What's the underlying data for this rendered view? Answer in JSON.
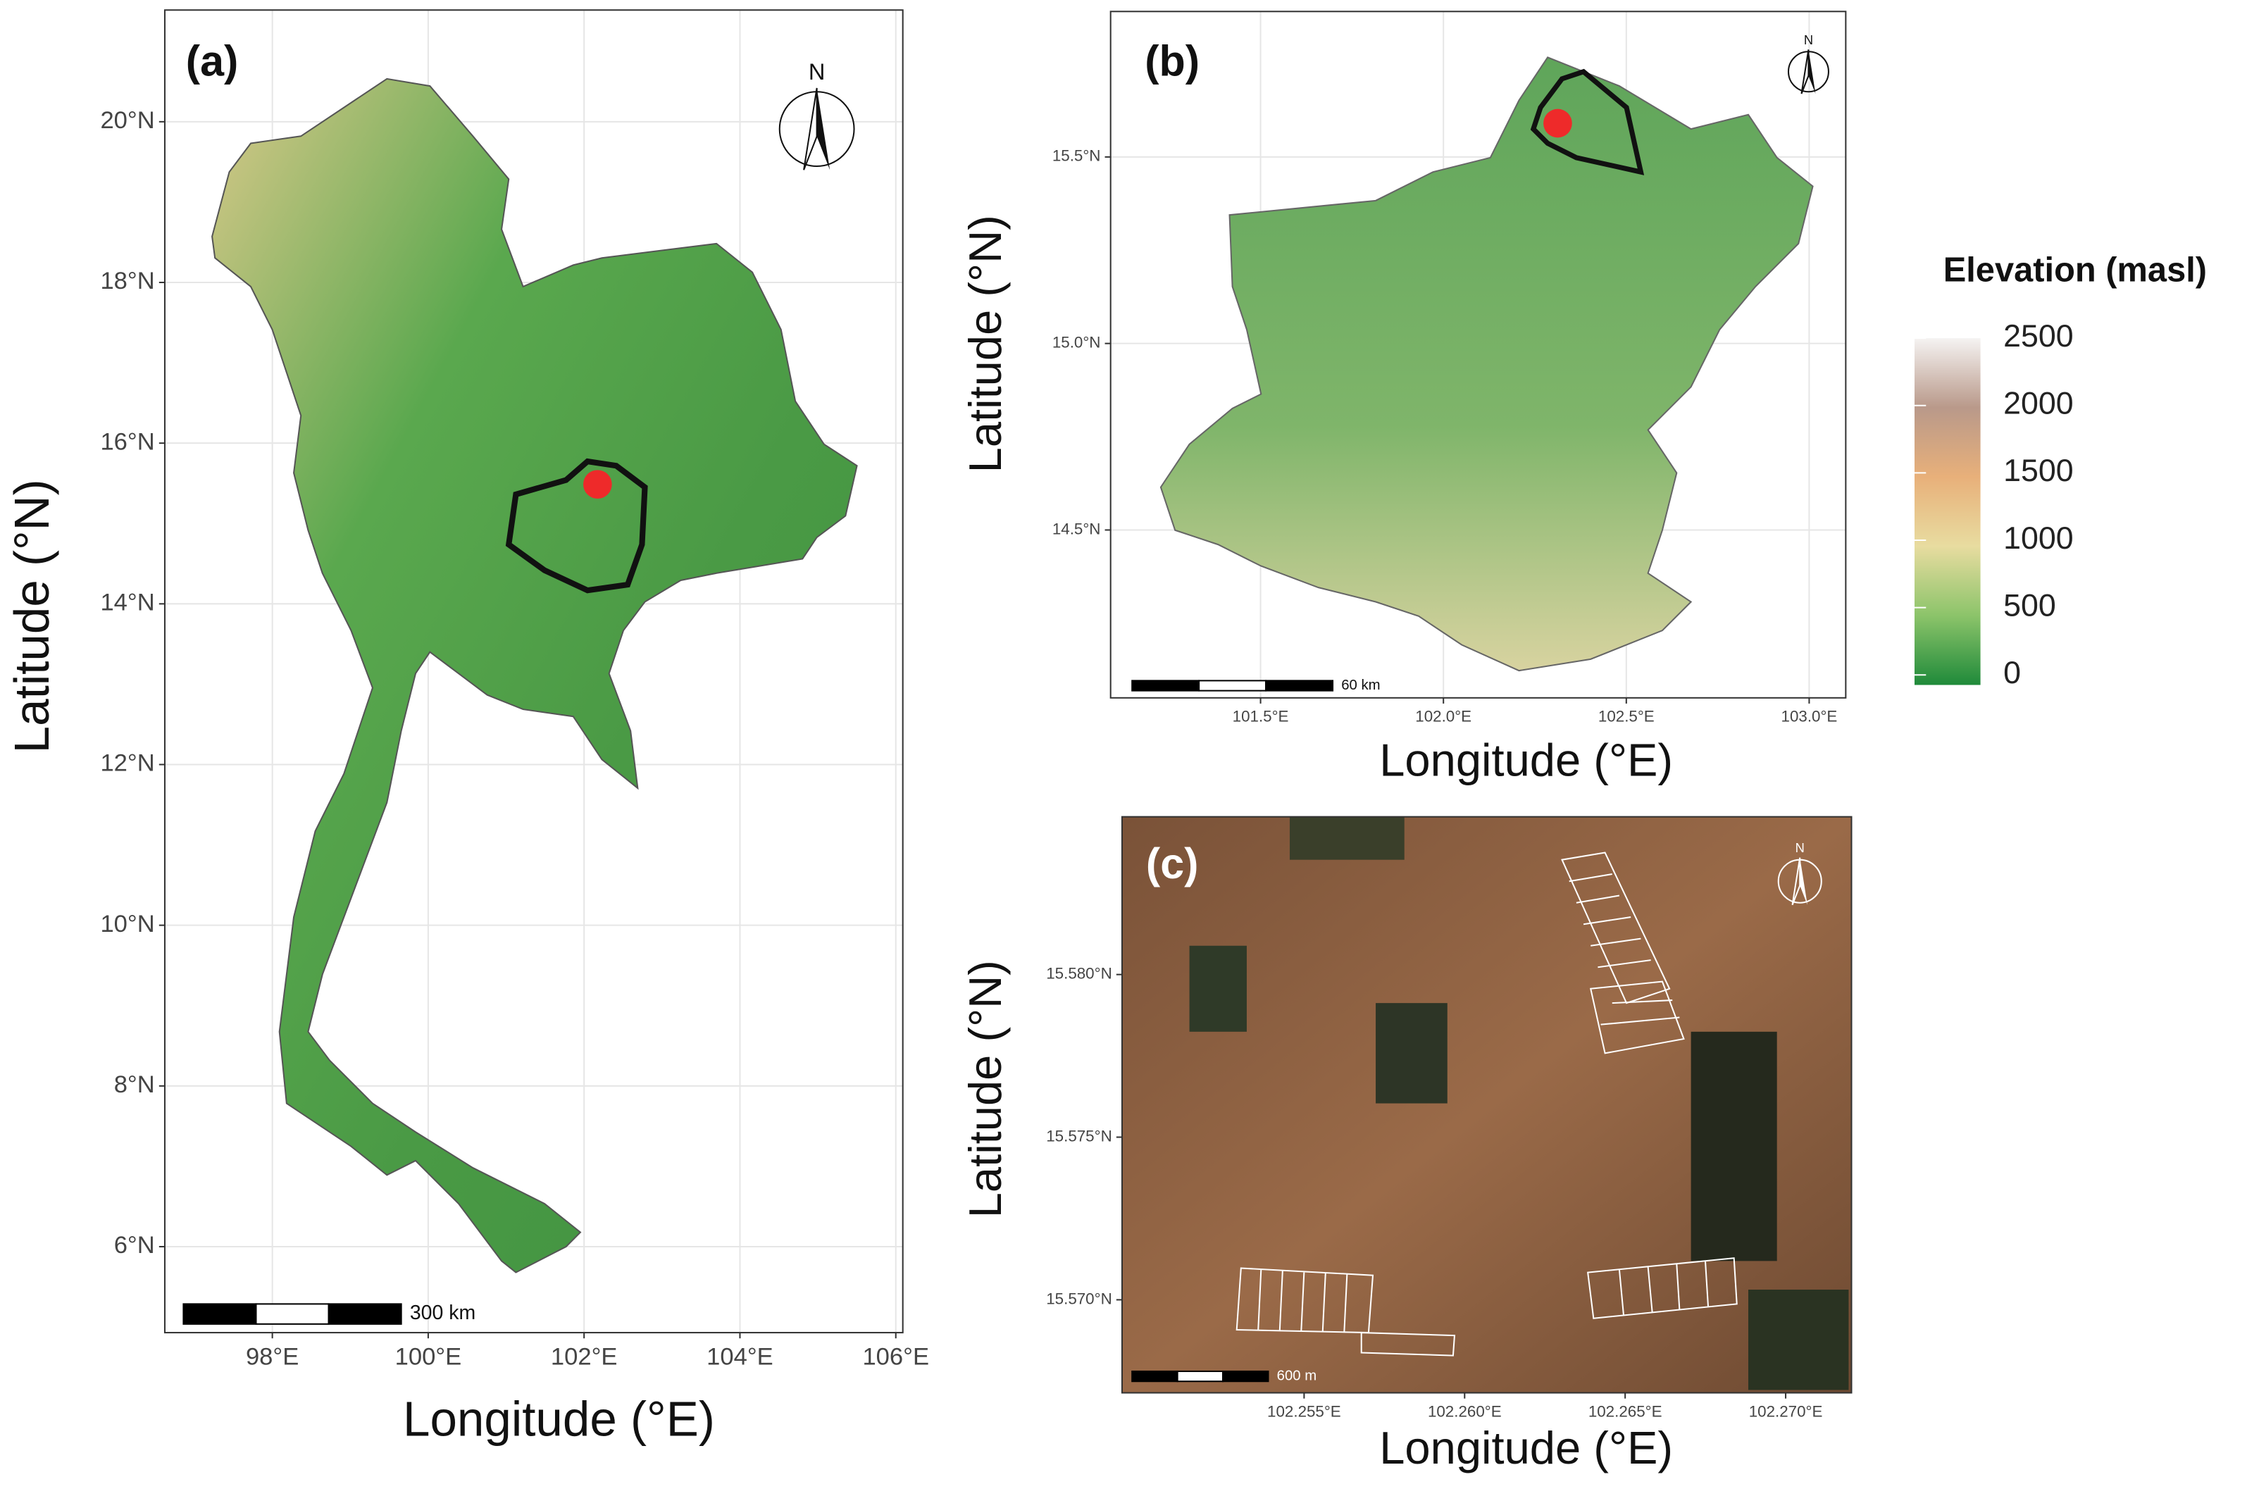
{
  "panels": [
    {
      "label": "(a)",
      "north": "N",
      "scale_bar": "300 km",
      "xlabel": "Longitude (°E)",
      "ylabel": "Latitude (°N)",
      "xlim": [
        96.62,
        106.09
      ],
      "ylim": [
        4.93,
        21.39
      ],
      "xticks": [
        {
          "value": 98,
          "label": "98°E"
        },
        {
          "value": 100,
          "label": "100°E"
        },
        {
          "value": 102,
          "label": "102°E"
        },
        {
          "value": 104,
          "label": "104°E"
        },
        {
          "value": 106,
          "label": "106°E"
        }
      ],
      "yticks": [
        {
          "value": 6,
          "label": "6°N"
        },
        {
          "value": 8,
          "label": "8°N"
        },
        {
          "value": 10,
          "label": "10°N"
        },
        {
          "value": 12,
          "label": "12°N"
        },
        {
          "value": 14,
          "label": "14°N"
        },
        {
          "value": 16,
          "label": "16°N"
        },
        {
          "value": 18,
          "label": "18°N"
        },
        {
          "value": 20,
          "label": "20°N"
        }
      ]
    },
    {
      "label": "(b)",
      "north": "N",
      "scale_bar": "60 km",
      "xlabel": "Longitude (°E)",
      "ylabel": "Latitude (°N)",
      "xlim": [
        101.09,
        103.1
      ],
      "ylim": [
        14.05,
        15.89
      ],
      "xticks": [
        {
          "value": 101.5,
          "label": "101.5°E"
        },
        {
          "value": 102.0,
          "label": "102.0°E"
        },
        {
          "value": 102.5,
          "label": "102.5°E"
        },
        {
          "value": 103.0,
          "label": "103.0°E"
        }
      ],
      "yticks": [
        {
          "value": 14.5,
          "label": "14.5°N"
        },
        {
          "value": 15.0,
          "label": "15.0°N"
        },
        {
          "value": 15.5,
          "label": "15.5°N"
        }
      ]
    },
    {
      "label": "(c)",
      "north": "N",
      "scale_bar": "600 m",
      "xlabel": "Longitude (°E)",
      "ylabel": "Latitude (°N)",
      "xlim": [
        102.24933,
        102.27205
      ],
      "ylim": [
        15.56714,
        15.58485
      ],
      "xticks": [
        {
          "value": 102.255,
          "label": "102.255°E"
        },
        {
          "value": 102.26,
          "label": "102.260°E"
        },
        {
          "value": 102.265,
          "label": "102.265°E"
        },
        {
          "value": 102.27,
          "label": "102.270°E"
        }
      ],
      "yticks": [
        {
          "value": 15.57,
          "label": "15.570°N"
        },
        {
          "value": 15.575,
          "label": "15.575°N"
        },
        {
          "value": 15.58,
          "label": "15.580°N"
        }
      ]
    }
  ],
  "legend": {
    "title": "Elevation (masl)",
    "lim": [
      0,
      2500
    ],
    "ticks": [
      0,
      500,
      1000,
      1500,
      2000,
      2500
    ]
  }
}
